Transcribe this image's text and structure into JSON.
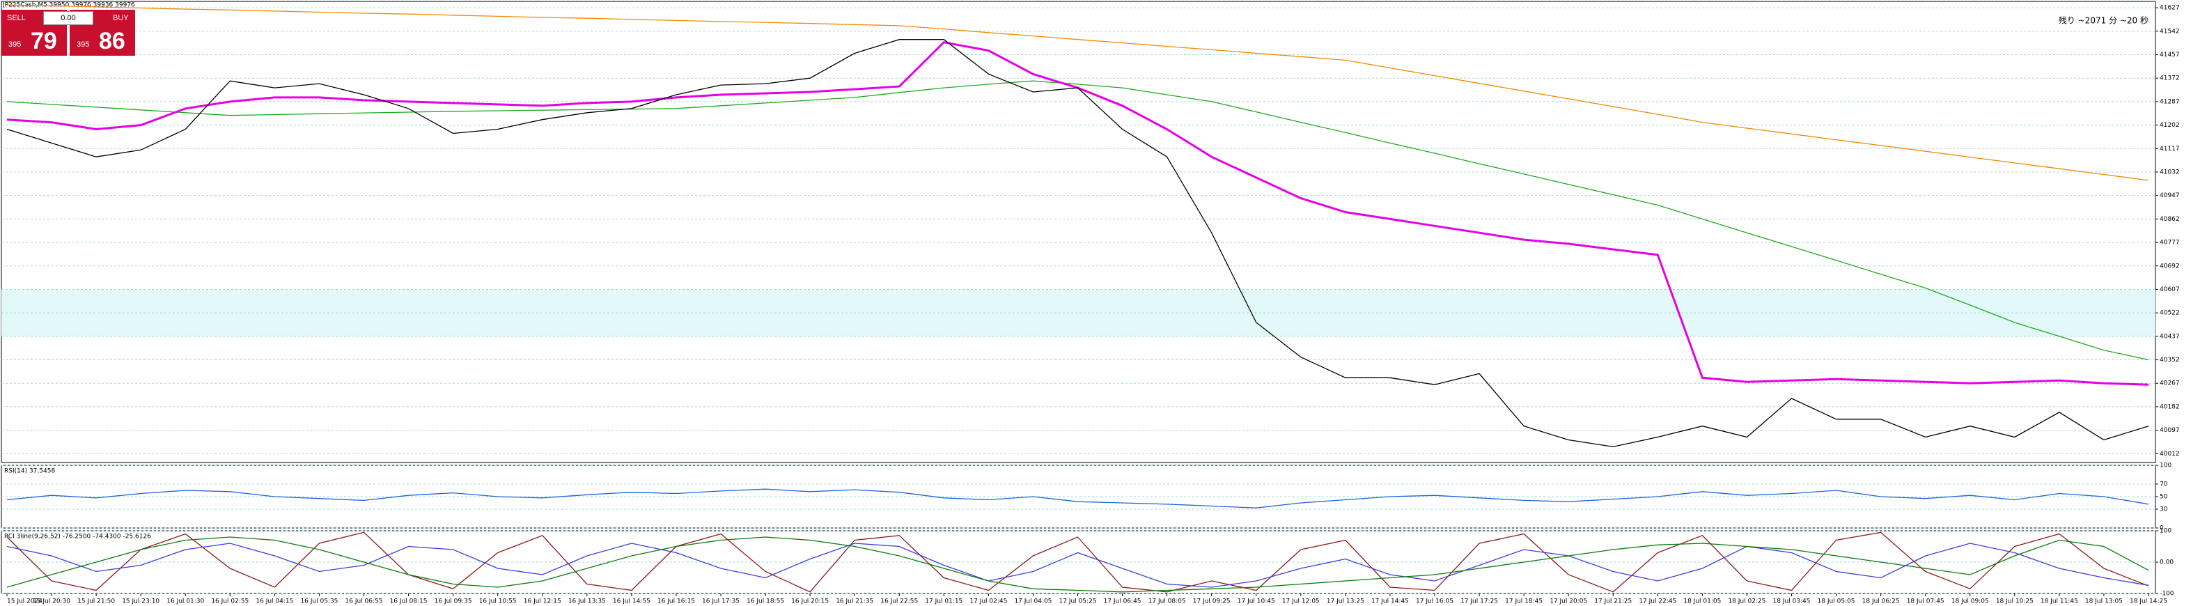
{
  "header": {
    "symbol_info": "JP225Cash,M5  39950 39976 39936 39976",
    "countdown": "残り ~2071 分 ~20 秒"
  },
  "trade_panel": {
    "sell": "SELL",
    "buy": "BUY",
    "volume": "0.00",
    "sell_price_prefix": "395",
    "sell_price_big": "79",
    "buy_price_prefix": "395",
    "buy_price_big": "86"
  },
  "chart_data": [
    {
      "type": "line",
      "categories": [
        "15 Jul 2024",
        "15 Jul 20:30",
        "15 Jul 21:50",
        "15 Jul 23:10",
        "16 Jul 01:30",
        "16 Jul 02:55",
        "16 Jul 04:15",
        "16 Jul 05:35",
        "16 Jul 06:55",
        "16 Jul 08:15",
        "16 Jul 09:35",
        "16 Jul 10:55",
        "16 Jul 12:15",
        "16 Jul 13:35",
        "16 Jul 14:55",
        "16 Jul 16:15",
        "16 Jul 17:35",
        "16 Jul 18:55",
        "16 Jul 20:15",
        "16 Jul 21:35",
        "16 Jul 22:55",
        "17 Jul 01:15",
        "17 Jul 02:45",
        "17 Jul 04:05",
        "17 Jul 05:25",
        "17 Jul 06:45",
        "17 Jul 08:05",
        "17 Jul 09:25",
        "17 Jul 10:45",
        "17 Jul 12:05",
        "17 Jul 13:25",
        "17 Jul 14:45",
        "17 Jul 16:05",
        "17 Jul 17:25",
        "17 Jul 18:45",
        "17 Jul 20:05",
        "17 Jul 21:25",
        "17 Jul 22:45",
        "18 Jul 01:05",
        "18 Jul 02:25",
        "18 Jul 03:45",
        "18 Jul 05:05",
        "18 Jul 06:25",
        "18 Jul 07:45",
        "18 Jul 09:05",
        "18 Jul 10:25",
        "18 Jul 11:45",
        "18 Jul 13:05",
        "18 Jul 14:25"
      ],
      "series": [
        {
          "color": "#f08a00",
          "values": [
            41637,
            41634,
            41630,
            41626,
            41622,
            41619,
            41615,
            41611,
            41607,
            41604,
            41600,
            41596,
            41592,
            41589,
            41585,
            41581,
            41577,
            41574,
            41570,
            41566,
            41562,
            41550,
            41537,
            41525,
            41512,
            41500,
            41487,
            41475,
            41462,
            41450,
            41437,
            41409,
            41381,
            41353,
            41325,
            41297,
            41269,
            41241,
            41212,
            41191,
            41170,
            41149,
            41128,
            41107,
            41086,
            41065,
            41044,
            41023,
            41002
          ]
        },
        {
          "color": "#1faa1f",
          "values": [
            41287,
            41277,
            41267,
            41257,
            41247,
            41237,
            41240,
            41243,
            41246,
            41249,
            41252,
            41254,
            41256,
            41258,
            41260,
            41262,
            41272,
            41282,
            41292,
            41302,
            41320,
            41337,
            41350,
            41362,
            41350,
            41337,
            41312,
            41287,
            41250,
            41212,
            41175,
            41137,
            41100,
            41062,
            41025,
            40987,
            40950,
            40912,
            40862,
            40812,
            40762,
            40712,
            40662,
            40612,
            40550,
            40487,
            40437,
            40387,
            40352
          ]
        },
        {
          "color": "#e600e6",
          "values": [
            41222,
            41212,
            41187,
            41202,
            41262,
            41287,
            41302,
            41302,
            41292,
            41287,
            41282,
            41277,
            41272,
            41282,
            41287,
            41302,
            41312,
            41317,
            41322,
            41332,
            41342,
            41502,
            41472,
            41387,
            41337,
            41272,
            41187,
            41087,
            41012,
            40937,
            40887,
            40862,
            40837,
            40812,
            40787,
            40772,
            40752,
            40732,
            40287,
            40272,
            40277,
            40282,
            40277,
            40272,
            40267,
            40272,
            40277,
            40267,
            40262
          ]
        },
        {
          "color": "#000000",
          "values": [
            41187,
            41137,
            41087,
            41112,
            41187,
            41362,
            41337,
            41352,
            41312,
            41262,
            41172,
            41187,
            41222,
            41247,
            41262,
            41312,
            41347,
            41352,
            41372,
            41462,
            41512,
            41512,
            41387,
            41322,
            41337,
            41187,
            41087,
            40812,
            40487,
            40362,
            40287,
            40287,
            40262,
            40302,
            40112,
            40062,
            40037,
            40072,
            40112,
            40072,
            40212,
            40137,
            40137,
            40072,
            40112,
            40072,
            40162,
            40062,
            40112
          ]
        }
      ],
      "ylim": [
        39980,
        41650
      ],
      "yticks": [
        41627,
        41542,
        41457,
        41372,
        41287,
        41202,
        41117,
        41032,
        40947,
        40862,
        40777,
        40692,
        40607,
        40522,
        40437,
        40352,
        40267,
        40182,
        40097,
        40012
      ],
      "shaded_range": [
        40437,
        40607
      ],
      "grid": true
    },
    {
      "type": "line",
      "title": "RSI(14) 37.5458",
      "series": [
        {
          "color": "#1e64dc",
          "values": [
            45,
            52,
            48,
            55,
            60,
            58,
            50,
            47,
            44,
            52,
            56,
            50,
            48,
            53,
            57,
            55,
            59,
            62,
            58,
            61,
            57,
            48,
            45,
            50,
            42,
            40,
            38,
            35,
            32,
            40,
            45,
            50,
            52,
            48,
            44,
            42,
            46,
            50,
            58,
            52,
            55,
            60,
            50,
            47,
            52,
            45,
            55,
            50,
            38
          ]
        }
      ],
      "ylim": [
        0,
        100
      ],
      "yticks": [
        100,
        70,
        50,
        30,
        0
      ],
      "grid": true
    },
    {
      "type": "line",
      "title": "RCI 3line(9,26,52) -76.2500 -74.4300 -25.6126",
      "series": [
        {
          "color": "#8b1a1a",
          "values": [
            80,
            -60,
            -90,
            40,
            90,
            -20,
            -80,
            60,
            95,
            -40,
            -85,
            30,
            85,
            -70,
            -90,
            50,
            90,
            -30,
            -95,
            70,
            85,
            -50,
            -90,
            20,
            80,
            -80,
            -95,
            -60,
            -90,
            40,
            70,
            -80,
            -90,
            60,
            90,
            -40,
            -95,
            30,
            85,
            -60,
            -90,
            70,
            95,
            -30,
            -85,
            50,
            90,
            -20,
            -76
          ]
        },
        {
          "color": "#3c3cdc",
          "values": [
            50,
            20,
            -30,
            -10,
            40,
            60,
            20,
            -30,
            -10,
            50,
            40,
            -20,
            -40,
            20,
            60,
            30,
            -20,
            -50,
            10,
            60,
            50,
            -10,
            -60,
            -30,
            30,
            -20,
            -70,
            -80,
            -60,
            -20,
            10,
            -40,
            -60,
            -10,
            40,
            20,
            -30,
            -60,
            -20,
            50,
            30,
            -30,
            -50,
            20,
            60,
            30,
            -20,
            -50,
            -74
          ]
        },
        {
          "color": "#0a7a0a",
          "values": [
            -80,
            -40,
            0,
            40,
            70,
            80,
            70,
            40,
            0,
            -40,
            -70,
            -80,
            -60,
            -20,
            20,
            50,
            70,
            80,
            70,
            50,
            20,
            -20,
            -60,
            -85,
            -90,
            -95,
            -90,
            -85,
            -80,
            -70,
            -60,
            -50,
            -40,
            -20,
            0,
            20,
            40,
            55,
            60,
            50,
            40,
            20,
            0,
            -20,
            -40,
            20,
            70,
            50,
            -26
          ]
        }
      ],
      "ylim": [
        -100,
        100
      ],
      "yticks": [
        100,
        {
          "value": 0,
          "label": "0.00"
        },
        -100
      ],
      "grid": true
    }
  ]
}
